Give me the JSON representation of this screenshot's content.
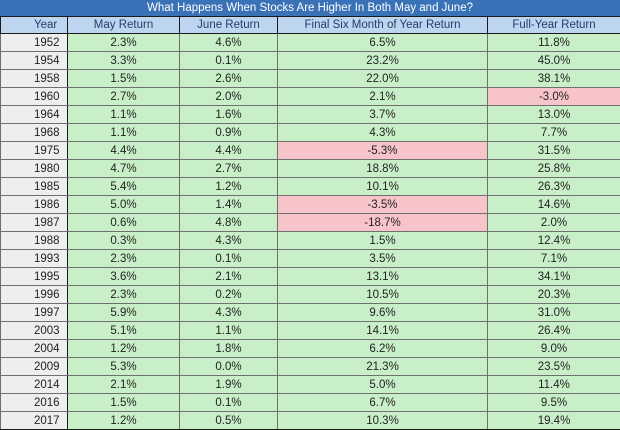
{
  "title": "What Happens When Stocks Are Higher In Both May and June?",
  "columns": [
    "Year",
    "May Return",
    "June Return",
    "Final Six Month of Year Return",
    "Full-Year Return"
  ],
  "rows": [
    {
      "year": "1952",
      "may": "2.3%",
      "june": "4.6%",
      "final_six": "6.5%",
      "full_year": "11.8%"
    },
    {
      "year": "1954",
      "may": "3.3%",
      "june": "0.1%",
      "final_six": "23.2%",
      "full_year": "45.0%"
    },
    {
      "year": "1958",
      "may": "1.5%",
      "june": "2.6%",
      "final_six": "22.0%",
      "full_year": "38.1%"
    },
    {
      "year": "1960",
      "may": "2.7%",
      "june": "2.0%",
      "final_six": "2.1%",
      "full_year": "-3.0%"
    },
    {
      "year": "1964",
      "may": "1.1%",
      "june": "1.6%",
      "final_six": "3.7%",
      "full_year": "13.0%"
    },
    {
      "year": "1968",
      "may": "1.1%",
      "june": "0.9%",
      "final_six": "4.3%",
      "full_year": "7.7%"
    },
    {
      "year": "1975",
      "may": "4.4%",
      "june": "4.4%",
      "final_six": "-5.3%",
      "full_year": "31.5%"
    },
    {
      "year": "1980",
      "may": "4.7%",
      "june": "2.7%",
      "final_six": "18.8%",
      "full_year": "25.8%"
    },
    {
      "year": "1985",
      "may": "5.4%",
      "june": "1.2%",
      "final_six": "10.1%",
      "full_year": "26.3%"
    },
    {
      "year": "1986",
      "may": "5.0%",
      "june": "1.4%",
      "final_six": "-3.5%",
      "full_year": "14.6%"
    },
    {
      "year": "1987",
      "may": "0.6%",
      "june": "4.8%",
      "final_six": "-18.7%",
      "full_year": "2.0%"
    },
    {
      "year": "1988",
      "may": "0.3%",
      "june": "4.3%",
      "final_six": "1.5%",
      "full_year": "12.4%"
    },
    {
      "year": "1993",
      "may": "2.3%",
      "june": "0.1%",
      "final_six": "3.5%",
      "full_year": "7.1%"
    },
    {
      "year": "1995",
      "may": "3.6%",
      "june": "2.1%",
      "final_six": "13.1%",
      "full_year": "34.1%"
    },
    {
      "year": "1996",
      "may": "2.3%",
      "june": "0.2%",
      "final_six": "10.5%",
      "full_year": "20.3%"
    },
    {
      "year": "1997",
      "may": "5.9%",
      "june": "4.3%",
      "final_six": "9.6%",
      "full_year": "31.0%"
    },
    {
      "year": "2003",
      "may": "5.1%",
      "june": "1.1%",
      "final_six": "14.1%",
      "full_year": "26.4%"
    },
    {
      "year": "2004",
      "may": "1.2%",
      "june": "1.8%",
      "final_six": "6.2%",
      "full_year": "9.0%"
    },
    {
      "year": "2009",
      "may": "5.3%",
      "june": "0.0%",
      "final_six": "21.3%",
      "full_year": "23.5%"
    },
    {
      "year": "2014",
      "may": "2.1%",
      "june": "1.9%",
      "final_six": "5.0%",
      "full_year": "11.4%"
    },
    {
      "year": "2016",
      "may": "1.5%",
      "june": "0.1%",
      "final_six": "6.7%",
      "full_year": "9.5%"
    },
    {
      "year": "2017",
      "may": "1.2%",
      "june": "0.5%",
      "final_six": "10.3%",
      "full_year": "19.4%"
    }
  ],
  "colors": {
    "title_bar": "#3a72b8",
    "header_fill": "#bdd5ee",
    "positive_fill": "#c8efc8",
    "negative_fill": "#f7c4c9",
    "year_fill": "#eeeeee"
  }
}
